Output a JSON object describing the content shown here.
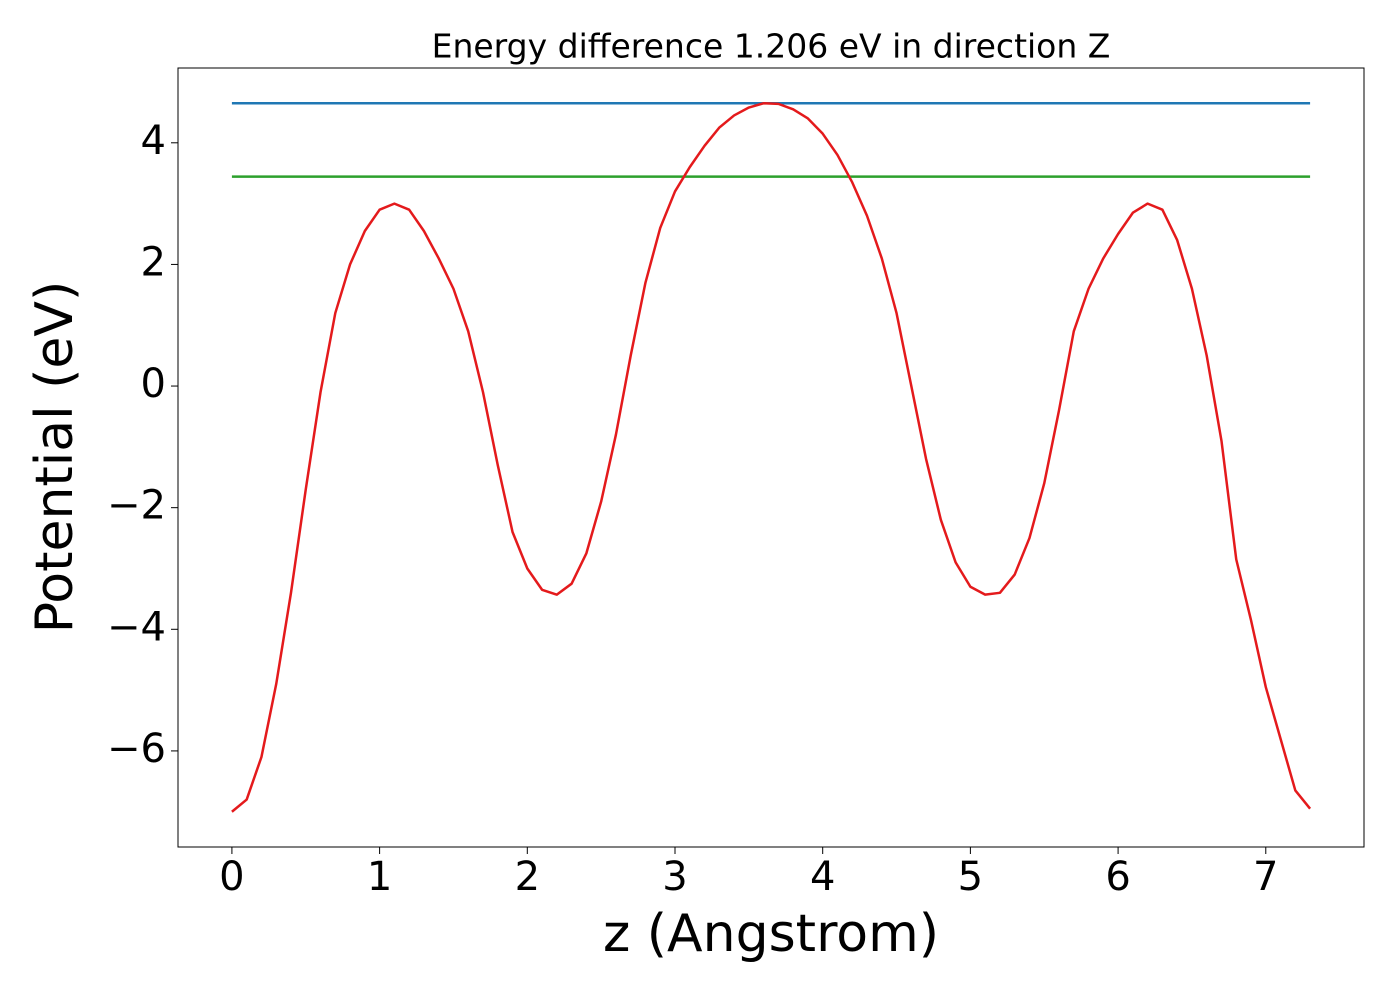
{
  "chart_data": {
    "type": "line",
    "title": "Energy difference 1.206 eV in direction Z",
    "xlabel": "z (Angstrom)",
    "ylabel": "Potential (eV)",
    "xlim": [
      -0.365,
      7.665
    ],
    "ylim": [
      -7.58,
      5.23
    ],
    "xticks": [
      0,
      1,
      2,
      3,
      4,
      5,
      6,
      7
    ],
    "yticks": [
      {
        "value": -6,
        "label": "−6"
      },
      {
        "value": -4,
        "label": "−4"
      },
      {
        "value": -2,
        "label": "−2"
      },
      0,
      2,
      4
    ],
    "series": [
      {
        "color": "#1f77b4",
        "x": [
          0,
          7.3
        ],
        "values": [
          4.65,
          4.65
        ]
      },
      {
        "color": "#2ca02c",
        "x": [
          0,
          7.3
        ],
        "values": [
          3.444,
          3.444
        ]
      },
      {
        "color": "#e41a1c",
        "x": [
          0,
          0.1,
          0.2,
          0.3,
          0.4,
          0.5,
          0.6,
          0.7,
          0.8,
          0.9,
          1.0,
          1.1,
          1.2,
          1.3,
          1.4,
          1.5,
          1.6,
          1.7,
          1.8,
          1.9,
          2.0,
          2.1,
          2.2,
          2.3,
          2.4,
          2.5,
          2.6,
          2.7,
          2.8,
          2.9,
          3.0,
          3.1,
          3.2,
          3.3,
          3.4,
          3.5,
          3.6,
          3.7,
          3.8,
          3.9,
          4.0,
          4.1,
          4.2,
          4.3,
          4.4,
          4.5,
          4.6,
          4.7,
          4.8,
          4.9,
          5.0,
          5.1,
          5.2,
          5.3,
          5.4,
          5.5,
          5.6,
          5.7,
          5.8,
          5.9,
          6.0,
          6.1,
          6.2,
          6.3,
          6.4,
          6.5,
          6.6,
          6.7,
          6.8,
          6.9,
          7.0,
          7.1,
          7.2,
          7.3
        ],
        "values": [
          -7.0,
          -6.8,
          -6.1,
          -4.9,
          -3.4,
          -1.7,
          -0.1,
          1.2,
          2.0,
          2.55,
          2.9,
          3.0,
          2.9,
          2.55,
          2.1,
          1.6,
          0.9,
          -0.1,
          -1.3,
          -2.4,
          -3.0,
          -3.35,
          -3.43,
          -3.25,
          -2.75,
          -1.9,
          -0.8,
          0.5,
          1.7,
          2.6,
          3.2,
          3.6,
          3.95,
          4.25,
          4.45,
          4.58,
          4.65,
          4.64,
          4.55,
          4.4,
          4.15,
          3.8,
          3.35,
          2.8,
          2.1,
          1.2,
          0.0,
          -1.2,
          -2.2,
          -2.9,
          -3.3,
          -3.43,
          -3.4,
          -3.1,
          -2.5,
          -1.6,
          -0.4,
          0.9,
          1.6,
          2.1,
          2.5,
          2.85,
          3.0,
          2.9,
          2.4,
          1.6,
          0.5,
          -0.9,
          -2.85,
          -3.85,
          -4.95,
          -5.8,
          -6.65,
          -6.95
        ]
      }
    ]
  }
}
